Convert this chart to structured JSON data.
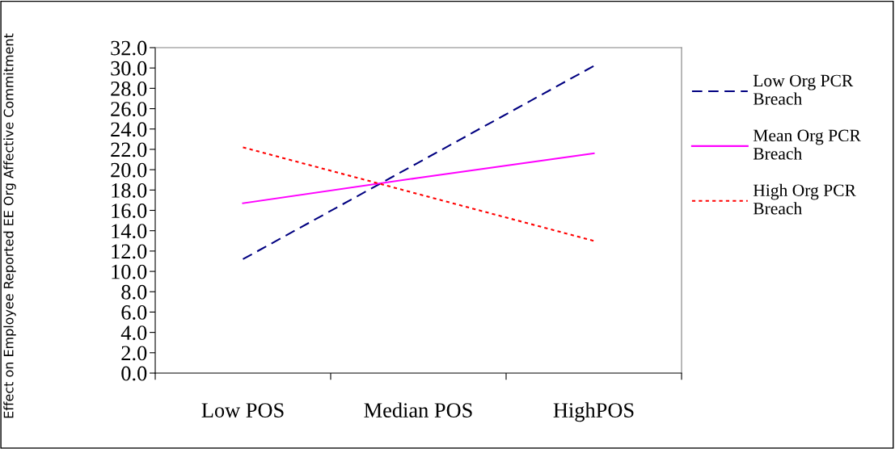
{
  "chart_data": {
    "type": "line",
    "annotations": [
      "Effect on Employee Reported EE Org Affective Commitment"
    ],
    "categories": [
      "Low POS",
      "Median POS",
      "HighPOS"
    ],
    "series": [
      {
        "name": "Low Org PCR\nBreach",
        "color": "#000080",
        "line_style": "dashed",
        "values": [
          11.2,
          20.7,
          30.2
        ]
      },
      {
        "name": "Mean Org PCR\nBreach",
        "color": "#ff00ff",
        "line_style": "solid",
        "values": [
          16.7,
          19.2,
          21.6
        ]
      },
      {
        "name": "High Org PCR\nBreach",
        "color": "#ff0000",
        "line_style": "dotted",
        "values": [
          22.2,
          17.6,
          13.0
        ]
      }
    ],
    "ylim": [
      0,
      32
    ],
    "yticks": [
      {
        "value": 0,
        "label": "0.0"
      },
      {
        "value": 2,
        "label": "2.0"
      },
      {
        "value": 4,
        "label": "4.0"
      },
      {
        "value": 6,
        "label": "6.0"
      },
      {
        "value": 8,
        "label": "8.0"
      },
      {
        "value": 10,
        "label": "10.0"
      },
      {
        "value": 12,
        "label": "12.0"
      },
      {
        "value": 14,
        "label": "14.0"
      },
      {
        "value": 16,
        "label": "16.0"
      },
      {
        "value": 18,
        "label": "18.0"
      },
      {
        "value": 20,
        "label": "20.0"
      },
      {
        "value": 22,
        "label": "22.0"
      },
      {
        "value": 24,
        "label": "24.0"
      },
      {
        "value": 26,
        "label": "26.0"
      },
      {
        "value": 28,
        "label": "28.0"
      },
      {
        "value": 30,
        "label": "30.0"
      },
      {
        "value": 32,
        "label": "32.0"
      }
    ],
    "grid": false,
    "legend": "right",
    "marker": "none"
  }
}
